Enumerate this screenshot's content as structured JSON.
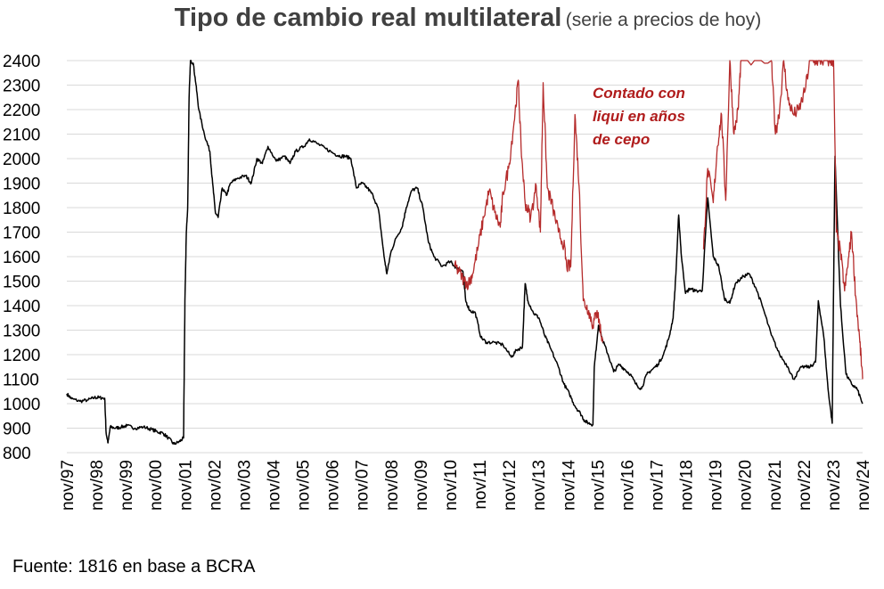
{
  "title": {
    "main": "Tipo de cambio real multilateral",
    "sub": "(serie a precios de hoy)"
  },
  "source": "Fuente: 1816 en base a BCRA",
  "colors": {
    "official": "#000000",
    "ccl": "#b52b2b",
    "grid": "#d9d9d9"
  },
  "chart_data": {
    "type": "line",
    "ylim": [
      800,
      2400
    ],
    "grid": true,
    "y_ticks": [
      800,
      900,
      1000,
      1100,
      1200,
      1300,
      1400,
      1500,
      1600,
      1700,
      1800,
      1900,
      2000,
      2100,
      2200,
      2300,
      2400
    ],
    "x_ticks": [
      "nov/97",
      "nov/98",
      "nov/99",
      "nov/00",
      "nov/01",
      "nov/02",
      "nov/03",
      "nov/04",
      "nov/05",
      "nov/06",
      "nov/07",
      "nov/08",
      "nov/09",
      "nov/10",
      "nov/11",
      "nov/12",
      "nov/13",
      "nov/14",
      "nov/15",
      "nov/16",
      "nov/17",
      "nov/18",
      "nov/19",
      "nov/20",
      "nov/21",
      "nov/22",
      "nov/23",
      "nov/24"
    ],
    "annotation": [
      "Contado con",
      "liqui en años",
      "de cepo"
    ],
    "series": [
      {
        "key": "official",
        "points": [
          [
            1997.83,
            1040
          ],
          [
            1998.0,
            1020
          ],
          [
            1998.3,
            1010
          ],
          [
            1998.6,
            1015
          ],
          [
            1998.83,
            1025
          ],
          [
            1999.0,
            1025
          ],
          [
            1999.2,
            1022
          ],
          [
            1999.25,
            880
          ],
          [
            1999.32,
            840
          ],
          [
            1999.4,
            905
          ],
          [
            1999.6,
            900
          ],
          [
            1999.8,
            905
          ],
          [
            2000.0,
            910
          ],
          [
            2000.3,
            900
          ],
          [
            2000.6,
            905
          ],
          [
            2000.9,
            895
          ],
          [
            2001.1,
            885
          ],
          [
            2001.3,
            880
          ],
          [
            2001.5,
            860
          ],
          [
            2001.7,
            835
          ],
          [
            2001.9,
            845
          ],
          [
            2002.05,
            860
          ],
          [
            2002.1,
            1420
          ],
          [
            2002.15,
            1700
          ],
          [
            2002.2,
            1800
          ],
          [
            2002.25,
            2250
          ],
          [
            2002.3,
            2400
          ],
          [
            2002.4,
            2390
          ],
          [
            2002.5,
            2300
          ],
          [
            2002.6,
            2200
          ],
          [
            2002.8,
            2100
          ],
          [
            2003.0,
            2030
          ],
          [
            2003.1,
            1900
          ],
          [
            2003.2,
            1780
          ],
          [
            2003.3,
            1760
          ],
          [
            2003.45,
            1880
          ],
          [
            2003.6,
            1850
          ],
          [
            2003.75,
            1900
          ],
          [
            2004.0,
            1920
          ],
          [
            2004.3,
            1930
          ],
          [
            2004.5,
            1900
          ],
          [
            2004.7,
            2000
          ],
          [
            2004.9,
            1980
          ],
          [
            2005.1,
            2050
          ],
          [
            2005.4,
            1990
          ],
          [
            2005.7,
            2010
          ],
          [
            2005.9,
            1980
          ],
          [
            2006.1,
            2030
          ],
          [
            2006.4,
            2050
          ],
          [
            2006.6,
            2080
          ],
          [
            2006.9,
            2060
          ],
          [
            2007.2,
            2040
          ],
          [
            2007.5,
            2020
          ],
          [
            2007.7,
            2010
          ],
          [
            2007.9,
            2010
          ],
          [
            2008.1,
            2000
          ],
          [
            2008.3,
            1880
          ],
          [
            2008.5,
            1900
          ],
          [
            2008.7,
            1880
          ],
          [
            2008.9,
            1850
          ],
          [
            2009.1,
            1790
          ],
          [
            2009.3,
            1600
          ],
          [
            2009.4,
            1530
          ],
          [
            2009.55,
            1620
          ],
          [
            2009.75,
            1680
          ],
          [
            2009.95,
            1720
          ],
          [
            2010.1,
            1800
          ],
          [
            2010.3,
            1870
          ],
          [
            2010.5,
            1880
          ],
          [
            2010.7,
            1800
          ],
          [
            2010.9,
            1660
          ],
          [
            2011.1,
            1600
          ],
          [
            2011.4,
            1560
          ],
          [
            2011.7,
            1580
          ],
          [
            2011.85,
            1560
          ],
          [
            2012.0,
            1550
          ],
          [
            2012.15,
            1540
          ],
          [
            2012.25,
            1420
          ],
          [
            2012.4,
            1380
          ],
          [
            2012.6,
            1370
          ],
          [
            2012.8,
            1270
          ],
          [
            2013.0,
            1250
          ],
          [
            2013.3,
            1250
          ],
          [
            2013.6,
            1240
          ],
          [
            2013.9,
            1190
          ],
          [
            2014.1,
            1220
          ],
          [
            2014.3,
            1230
          ],
          [
            2014.4,
            1490
          ],
          [
            2014.5,
            1420
          ],
          [
            2014.7,
            1370
          ],
          [
            2014.9,
            1350
          ],
          [
            2015.1,
            1280
          ],
          [
            2015.3,
            1230
          ],
          [
            2015.6,
            1150
          ],
          [
            2015.8,
            1080
          ],
          [
            2016.0,
            1040
          ],
          [
            2016.2,
            990
          ],
          [
            2016.4,
            960
          ],
          [
            2016.55,
            930
          ],
          [
            2016.7,
            920
          ],
          [
            2016.85,
            915
          ],
          [
            2016.9,
            1150
          ],
          [
            2017.05,
            1320
          ],
          [
            2017.2,
            1260
          ],
          [
            2017.4,
            1200
          ],
          [
            2017.6,
            1130
          ],
          [
            2017.8,
            1160
          ],
          [
            2018.0,
            1140
          ],
          [
            2018.2,
            1120
          ],
          [
            2018.4,
            1080
          ],
          [
            2018.6,
            1060
          ],
          [
            2018.8,
            1120
          ],
          [
            2019.0,
            1140
          ],
          [
            2019.2,
            1160
          ],
          [
            2019.4,
            1200
          ],
          [
            2019.6,
            1270
          ],
          [
            2019.75,
            1350
          ],
          [
            2019.85,
            1530
          ],
          [
            2019.95,
            1770
          ],
          [
            2020.05,
            1600
          ],
          [
            2020.2,
            1450
          ],
          [
            2020.35,
            1470
          ],
          [
            2020.55,
            1460
          ],
          [
            2020.8,
            1460
          ],
          [
            2021.0,
            1840
          ],
          [
            2021.2,
            1600
          ],
          [
            2021.4,
            1560
          ],
          [
            2021.6,
            1430
          ],
          [
            2021.8,
            1410
          ],
          [
            2022.0,
            1490
          ],
          [
            2022.3,
            1520
          ],
          [
            2022.5,
            1530
          ],
          [
            2022.75,
            1470
          ],
          [
            2023.0,
            1390
          ],
          [
            2023.3,
            1280
          ],
          [
            2023.6,
            1200
          ],
          [
            2023.9,
            1150
          ],
          [
            2024.1,
            1100
          ],
          [
            2024.4,
            1150
          ],
          [
            2024.7,
            1150
          ],
          [
            2024.9,
            1170
          ],
          [
            2025.0,
            1420
          ],
          [
            2025.2,
            1270
          ],
          [
            2025.35,
            1060
          ],
          [
            2025.5,
            920
          ],
          [
            2025.6,
            2010
          ],
          [
            2025.8,
            1400
          ],
          [
            2026.0,
            1120
          ],
          [
            2026.2,
            1080
          ],
          [
            2026.4,
            1060
          ],
          [
            2026.6,
            1000
          ]
        ]
      },
      {
        "key": "ccl",
        "points": [
          [
            2011.85,
            1560
          ],
          [
            2012.0,
            1540
          ],
          [
            2012.2,
            1500
          ],
          [
            2012.35,
            1490
          ],
          [
            2012.5,
            1530
          ],
          [
            2012.7,
            1640
          ],
          [
            2012.9,
            1760
          ],
          [
            2013.1,
            1870
          ],
          [
            2013.3,
            1780
          ],
          [
            2013.5,
            1720
          ],
          [
            2013.6,
            1860
          ],
          [
            2013.8,
            1960
          ],
          [
            2014.0,
            2150
          ],
          [
            2014.15,
            2320
          ],
          [
            2014.25,
            2050
          ],
          [
            2014.4,
            1820
          ],
          [
            2014.6,
            1760
          ],
          [
            2014.8,
            1890
          ],
          [
            2014.95,
            1700
          ],
          [
            2015.05,
            2310
          ],
          [
            2015.2,
            1880
          ],
          [
            2015.4,
            1800
          ],
          [
            2015.6,
            1700
          ],
          [
            2015.8,
            1650
          ],
          [
            2015.9,
            1560
          ],
          [
            2016.05,
            1560
          ],
          [
            2016.2,
            2180
          ],
          [
            2016.35,
            1890
          ],
          [
            2016.5,
            1420
          ],
          [
            2016.7,
            1380
          ],
          [
            2016.85,
            1320
          ],
          [
            2017.0,
            1380
          ],
          [
            2017.1,
            1320
          ],
          [
            2017.2,
            1250
          ],
          [
            2020.85,
            1630
          ],
          [
            2021.0,
            1960
          ],
          [
            2021.2,
            1820
          ],
          [
            2021.35,
            2050
          ],
          [
            2021.5,
            2180
          ],
          [
            2021.65,
            1830
          ],
          [
            2021.8,
            2400
          ],
          [
            2021.95,
            2100
          ],
          [
            2022.1,
            2200
          ],
          [
            2022.2,
            2400
          ],
          [
            2023.3,
            2400
          ],
          [
            2023.45,
            2100
          ],
          [
            2023.6,
            2200
          ],
          [
            2023.75,
            2400
          ],
          [
            2023.9,
            2240
          ],
          [
            2024.1,
            2180
          ],
          [
            2024.3,
            2200
          ],
          [
            2024.5,
            2270
          ],
          [
            2024.7,
            2400
          ],
          [
            2024.9,
            2400
          ],
          [
            2025.1,
            2400
          ],
          [
            2025.3,
            2400
          ],
          [
            2025.45,
            2400
          ],
          [
            2025.55,
            2400
          ],
          [
            2025.65,
            1700
          ],
          [
            2025.8,
            1620
          ],
          [
            2025.95,
            1460
          ],
          [
            2026.1,
            1600
          ],
          [
            2026.2,
            1700
          ],
          [
            2026.35,
            1440
          ],
          [
            2026.5,
            1250
          ],
          [
            2026.6,
            1100
          ]
        ]
      }
    ]
  }
}
